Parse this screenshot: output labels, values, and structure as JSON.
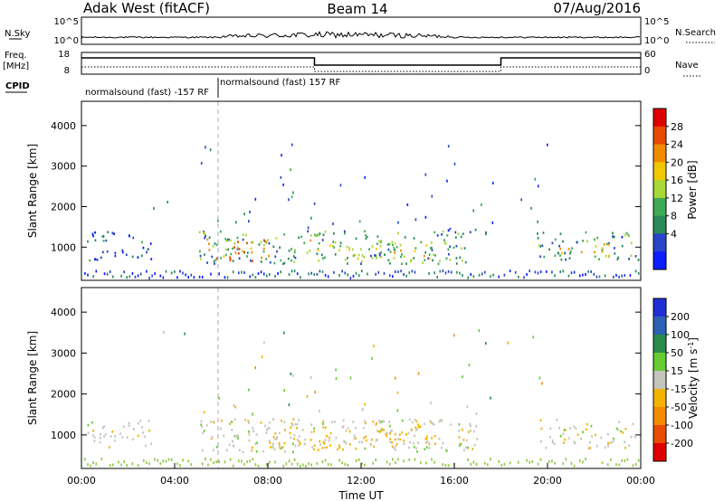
{
  "header": {
    "station": "Adak West (fitACF)",
    "beam": "Beam 14",
    "date": "07/Aug/2016"
  },
  "strip": {
    "nsky_label": "N.Sky",
    "nsky_ticks": [
      "10^5",
      "10^0"
    ],
    "nsearch_label": "N.Search",
    "nsearch_ticks": [
      "10^5",
      "10^0"
    ],
    "freq_label": "Freq.",
    "freq_unit": "[MHz]",
    "freq_ticks": [
      "18",
      "8"
    ],
    "nave_label": "Nave",
    "nave_ticks": [
      "60",
      "0"
    ],
    "cpid_label": "CPID",
    "cpid_segments": [
      "normalsound (fast) -157 RF",
      "normalsound (fast) 157 RF"
    ]
  },
  "colors": {
    "power": [
      "#0a1eff",
      "#2846c8",
      "#2a8a5a",
      "#3faa55",
      "#a8d838",
      "#f0c800",
      "#f08c00",
      "#e84a00",
      "#e00000"
    ],
    "velocity": [
      "#1f2fd6",
      "#2d62b4",
      "#2a8a4a",
      "#66cc33",
      "#c4c4bc",
      "#f3b300",
      "#f28c00",
      "#e84c00",
      "#e00000"
    ],
    "ground": "#8fc63f"
  },
  "chart_data": [
    {
      "type": "heatmap",
      "quantity": "Power",
      "title": "",
      "xlabel": "",
      "ylabel": "Slant Range [km]",
      "colorbar_label": "Power [dB]",
      "colorbar_ticks": [
        "28",
        "24",
        "20",
        "16",
        "12",
        "8",
        "4"
      ],
      "clim": [
        0,
        30
      ],
      "xlim_hours": [
        0,
        24
      ],
      "ylim_km": [
        180,
        4600
      ],
      "yticks": [
        "4000",
        "3000",
        "2000",
        "1000"
      ],
      "yticks_km": [
        4000,
        3000,
        2000,
        1000
      ],
      "regions": [
        {
          "t": [
            5.0,
            16.5
          ],
          "r": [
            600,
            1420
          ],
          "v": 10
        },
        {
          "t": [
            5.3,
            8.0
          ],
          "r": [
            650,
            1250
          ],
          "v": 21
        },
        {
          "t": [
            9.5,
            15.0
          ],
          "r": [
            700,
            1200
          ],
          "v": 16
        },
        {
          "t": [
            15.0,
            17.5
          ],
          "r": [
            1350,
            1500
          ],
          "v": 6
        },
        {
          "t": [
            19.5,
            23.9
          ],
          "r": [
            700,
            1400
          ],
          "v": 9
        },
        {
          "t": [
            20.5,
            22.8
          ],
          "r": [
            800,
            1100
          ],
          "v": 17
        },
        {
          "t": [
            0.1,
            3.0
          ],
          "r": [
            700,
            1400
          ],
          "v": 5
        }
      ]
    },
    {
      "type": "heatmap",
      "quantity": "Velocity",
      "title": "",
      "xlabel": "Time UT",
      "ylabel": "Slant Range [km]",
      "colorbar_label": "Velocity [m s^-1]",
      "colorbar_ticks": [
        "200",
        "100",
        "50",
        "15",
        "-15",
        "-50",
        "-100",
        "-200"
      ],
      "clim": [
        -250,
        250
      ],
      "xlim_hours": [
        0,
        24
      ],
      "xticks": [
        "00:00",
        "04:00",
        "08:00",
        "12:00",
        "16:00",
        "20:00",
        "00:00"
      ],
      "xticks_hours": [
        0,
        4,
        8,
        12,
        16,
        20,
        24
      ],
      "ylim_km": [
        180,
        4600
      ],
      "yticks": [
        "4000",
        "3000",
        "2000",
        "1000"
      ],
      "yticks_km": [
        4000,
        3000,
        2000,
        1000
      ],
      "regions": [
        {
          "t": [
            5.0,
            17.0
          ],
          "r": [
            600,
            1420
          ],
          "v": 0
        },
        {
          "t": [
            8.0,
            15.5
          ],
          "r": [
            650,
            1400
          ],
          "v": -35
        },
        {
          "t": [
            19.5,
            23.9
          ],
          "r": [
            700,
            1400
          ],
          "v": 0
        },
        {
          "t": [
            0.1,
            3.0
          ],
          "r": [
            700,
            1400
          ],
          "v": 0
        }
      ]
    }
  ]
}
